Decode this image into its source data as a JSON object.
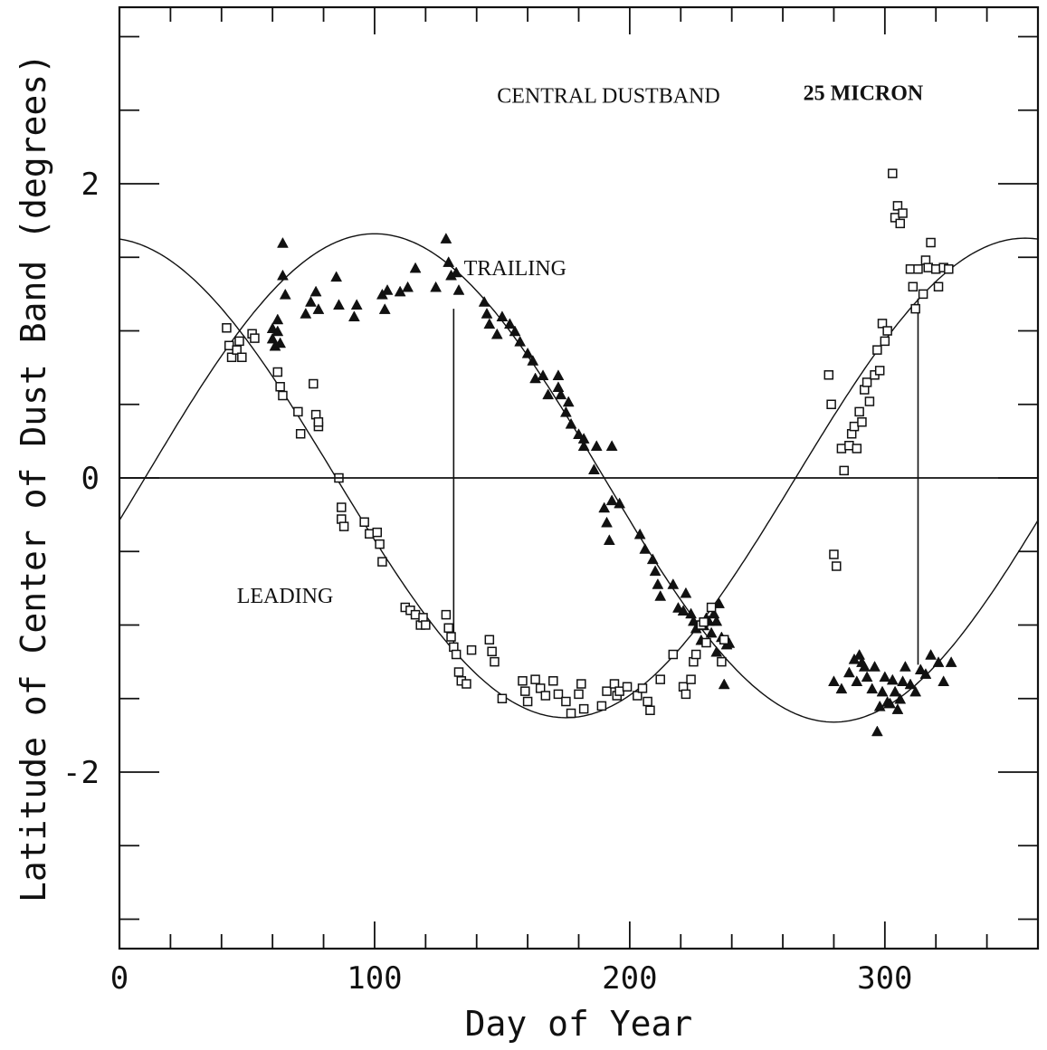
{
  "chart_data": {
    "type": "scatter",
    "title": "",
    "xlabel": "Day of Year",
    "ylabel": "Latitude of Center of Dust Band (degrees)",
    "xlim": [
      0,
      360
    ],
    "ylim": [
      -3.2,
      3.2
    ],
    "x_ticks": [
      0,
      100,
      200,
      300
    ],
    "y_ticks": [
      -2,
      0,
      2
    ],
    "x_tick_labels": [
      "0",
      "100",
      "200",
      "300"
    ],
    "y_tick_labels": [
      "-2",
      "0",
      "2"
    ],
    "grid": false,
    "annotations": [
      {
        "text": "CENTRAL DUSTBAND",
        "x": 148,
        "y": 2.55,
        "weight": "normal"
      },
      {
        "text": "25 MICRON",
        "x": 268,
        "y": 2.57,
        "weight": "bold"
      },
      {
        "text": "TRAILING",
        "x": 135,
        "y": 1.38,
        "weight": "normal"
      },
      {
        "text": "LEADING",
        "x": 46,
        "y": -0.85,
        "weight": "normal"
      }
    ],
    "vertical_markers": [
      {
        "x": 131,
        "y_from": -1.15,
        "y_to": 1.15
      },
      {
        "x": 313,
        "y_from": -1.27,
        "y_to": 1.22
      }
    ],
    "series": [
      {
        "name": "TRAILING",
        "marker": "filled-triangle",
        "curve": {
          "amplitude": 1.66,
          "phase_day": 100,
          "period": 360
        },
        "points": [
          [
            60,
            0.95
          ],
          [
            60,
            1.02
          ],
          [
            61,
            0.9
          ],
          [
            62,
            1.0
          ],
          [
            62,
            1.08
          ],
          [
            63,
            0.92
          ],
          [
            64,
            1.6
          ],
          [
            64,
            1.38
          ],
          [
            65,
            1.25
          ],
          [
            73,
            1.12
          ],
          [
            75,
            1.2
          ],
          [
            77,
            1.27
          ],
          [
            78,
            1.15
          ],
          [
            85,
            1.37
          ],
          [
            86,
            1.18
          ],
          [
            92,
            1.1
          ],
          [
            93,
            1.18
          ],
          [
            103,
            1.25
          ],
          [
            104,
            1.15
          ],
          [
            105,
            1.28
          ],
          [
            110,
            1.27
          ],
          [
            113,
            1.3
          ],
          [
            116,
            1.43
          ],
          [
            124,
            1.3
          ],
          [
            128,
            1.63
          ],
          [
            129,
            1.47
          ],
          [
            130,
            1.38
          ],
          [
            132,
            1.4
          ],
          [
            133,
            1.28
          ],
          [
            143,
            1.2
          ],
          [
            144,
            1.12
          ],
          [
            145,
            1.05
          ],
          [
            148,
            0.98
          ],
          [
            150,
            1.1
          ],
          [
            153,
            1.05
          ],
          [
            155,
            1.0
          ],
          [
            157,
            0.93
          ],
          [
            160,
            0.85
          ],
          [
            162,
            0.8
          ],
          [
            163,
            0.68
          ],
          [
            166,
            0.7
          ],
          [
            168,
            0.57
          ],
          [
            172,
            0.7
          ],
          [
            172,
            0.62
          ],
          [
            173,
            0.57
          ],
          [
            175,
            0.45
          ],
          [
            176,
            0.52
          ],
          [
            177,
            0.37
          ],
          [
            180,
            0.3
          ],
          [
            182,
            0.22
          ],
          [
            182,
            0.27
          ],
          [
            186,
            0.06
          ],
          [
            187,
            0.22
          ],
          [
            193,
            0.22
          ],
          [
            190,
            -0.2
          ],
          [
            191,
            -0.3
          ],
          [
            192,
            -0.42
          ],
          [
            193,
            -0.15
          ],
          [
            196,
            -0.17
          ],
          [
            204,
            -0.38
          ],
          [
            206,
            -0.48
          ],
          [
            209,
            -0.55
          ],
          [
            210,
            -0.63
          ],
          [
            211,
            -0.72
          ],
          [
            212,
            -0.8
          ],
          [
            217,
            -0.72
          ],
          [
            219,
            -0.88
          ],
          [
            221,
            -0.9
          ],
          [
            222,
            -0.78
          ],
          [
            224,
            -0.92
          ],
          [
            225,
            -0.97
          ],
          [
            226,
            -1.02
          ],
          [
            228,
            -1.1
          ],
          [
            229,
            -1.0
          ],
          [
            230,
            -0.95
          ],
          [
            231,
            -0.97
          ],
          [
            232,
            -1.05
          ],
          [
            233,
            -0.92
          ],
          [
            234,
            -0.97
          ],
          [
            234,
            -1.18
          ],
          [
            235,
            -0.85
          ],
          [
            236,
            -1.08
          ],
          [
            237,
            -1.4
          ],
          [
            238,
            -1.13
          ],
          [
            239,
            -1.12
          ],
          [
            280,
            -1.38
          ],
          [
            283,
            -1.43
          ],
          [
            286,
            -1.32
          ],
          [
            288,
            -1.23
          ],
          [
            289,
            -1.38
          ],
          [
            290,
            -1.2
          ],
          [
            291,
            -1.25
          ],
          [
            292,
            -1.28
          ],
          [
            293,
            -1.35
          ],
          [
            295,
            -1.43
          ],
          [
            296,
            -1.28
          ],
          [
            297,
            -1.72
          ],
          [
            298,
            -1.55
          ],
          [
            299,
            -1.45
          ],
          [
            300,
            -1.35
          ],
          [
            301,
            -1.52
          ],
          [
            302,
            -1.53
          ],
          [
            303,
            -1.37
          ],
          [
            304,
            -1.45
          ],
          [
            305,
            -1.57
          ],
          [
            306,
            -1.5
          ],
          [
            307,
            -1.38
          ],
          [
            308,
            -1.28
          ],
          [
            310,
            -1.4
          ],
          [
            312,
            -1.45
          ],
          [
            314,
            -1.3
          ],
          [
            316,
            -1.33
          ],
          [
            318,
            -1.2
          ],
          [
            321,
            -1.25
          ],
          [
            323,
            -1.38
          ],
          [
            326,
            -1.25
          ]
        ]
      },
      {
        "name": "LEADING",
        "marker": "open-square",
        "curve": {
          "amplitude": 1.63,
          "phase_day": 355,
          "period": 360
        },
        "points": [
          [
            42,
            1.02
          ],
          [
            43,
            0.9
          ],
          [
            44,
            0.82
          ],
          [
            46,
            0.87
          ],
          [
            47,
            0.93
          ],
          [
            48,
            0.82
          ],
          [
            52,
            0.98
          ],
          [
            53,
            0.95
          ],
          [
            62,
            0.72
          ],
          [
            63,
            0.62
          ],
          [
            64,
            0.56
          ],
          [
            70,
            0.45
          ],
          [
            71,
            0.3
          ],
          [
            76,
            0.64
          ],
          [
            77,
            0.43
          ],
          [
            78,
            0.35
          ],
          [
            78,
            0.38
          ],
          [
            86,
            0.0
          ],
          [
            87,
            -0.2
          ],
          [
            87,
            -0.28
          ],
          [
            88,
            -0.33
          ],
          [
            96,
            -0.3
          ],
          [
            98,
            -0.38
          ],
          [
            101,
            -0.37
          ],
          [
            102,
            -0.45
          ],
          [
            103,
            -0.57
          ],
          [
            112,
            -0.88
          ],
          [
            114,
            -0.9
          ],
          [
            116,
            -0.93
          ],
          [
            118,
            -1.0
          ],
          [
            119,
            -0.95
          ],
          [
            120,
            -1.0
          ],
          [
            128,
            -0.93
          ],
          [
            129,
            -1.02
          ],
          [
            130,
            -1.08
          ],
          [
            131,
            -1.15
          ],
          [
            132,
            -1.2
          ],
          [
            133,
            -1.32
          ],
          [
            134,
            -1.38
          ],
          [
            136,
            -1.4
          ],
          [
            138,
            -1.17
          ],
          [
            145,
            -1.1
          ],
          [
            146,
            -1.18
          ],
          [
            147,
            -1.25
          ],
          [
            150,
            -1.5
          ],
          [
            158,
            -1.38
          ],
          [
            159,
            -1.45
          ],
          [
            160,
            -1.52
          ],
          [
            163,
            -1.37
          ],
          [
            165,
            -1.43
          ],
          [
            167,
            -1.48
          ],
          [
            170,
            -1.38
          ],
          [
            172,
            -1.47
          ],
          [
            175,
            -1.52
          ],
          [
            177,
            -1.6
          ],
          [
            180,
            -1.47
          ],
          [
            181,
            -1.4
          ],
          [
            182,
            -1.57
          ],
          [
            189,
            -1.55
          ],
          [
            191,
            -1.45
          ],
          [
            194,
            -1.4
          ],
          [
            195,
            -1.48
          ],
          [
            196,
            -1.45
          ],
          [
            199,
            -1.42
          ],
          [
            203,
            -1.48
          ],
          [
            205,
            -1.43
          ],
          [
            207,
            -1.52
          ],
          [
            208,
            -1.58
          ],
          [
            212,
            -1.37
          ],
          [
            217,
            -1.2
          ],
          [
            221,
            -1.42
          ],
          [
            222,
            -1.47
          ],
          [
            224,
            -1.37
          ],
          [
            225,
            -1.25
          ],
          [
            226,
            -1.2
          ],
          [
            228,
            -1.0
          ],
          [
            229,
            -0.98
          ],
          [
            230,
            -1.12
          ],
          [
            232,
            -0.88
          ],
          [
            236,
            -1.25
          ],
          [
            237,
            -1.1
          ],
          [
            278,
            0.7
          ],
          [
            279,
            0.5
          ],
          [
            280,
            -0.52
          ],
          [
            281,
            -0.6
          ],
          [
            283,
            0.2
          ],
          [
            284,
            0.05
          ],
          [
            286,
            0.22
          ],
          [
            287,
            0.3
          ],
          [
            288,
            0.35
          ],
          [
            289,
            0.2
          ],
          [
            290,
            0.45
          ],
          [
            291,
            0.38
          ],
          [
            292,
            0.6
          ],
          [
            293,
            0.65
          ],
          [
            294,
            0.52
          ],
          [
            296,
            0.7
          ],
          [
            297,
            0.87
          ],
          [
            298,
            0.73
          ],
          [
            299,
            1.05
          ],
          [
            300,
            0.93
          ],
          [
            301,
            1.0
          ],
          [
            303,
            2.07
          ],
          [
            304,
            1.77
          ],
          [
            305,
            1.85
          ],
          [
            306,
            1.73
          ],
          [
            307,
            1.8
          ],
          [
            310,
            1.42
          ],
          [
            311,
            1.3
          ],
          [
            312,
            1.15
          ],
          [
            313,
            1.42
          ],
          [
            315,
            1.25
          ],
          [
            316,
            1.48
          ],
          [
            317,
            1.43
          ],
          [
            318,
            1.6
          ],
          [
            320,
            1.42
          ],
          [
            321,
            1.3
          ],
          [
            323,
            1.43
          ],
          [
            325,
            1.42
          ]
        ]
      }
    ]
  }
}
